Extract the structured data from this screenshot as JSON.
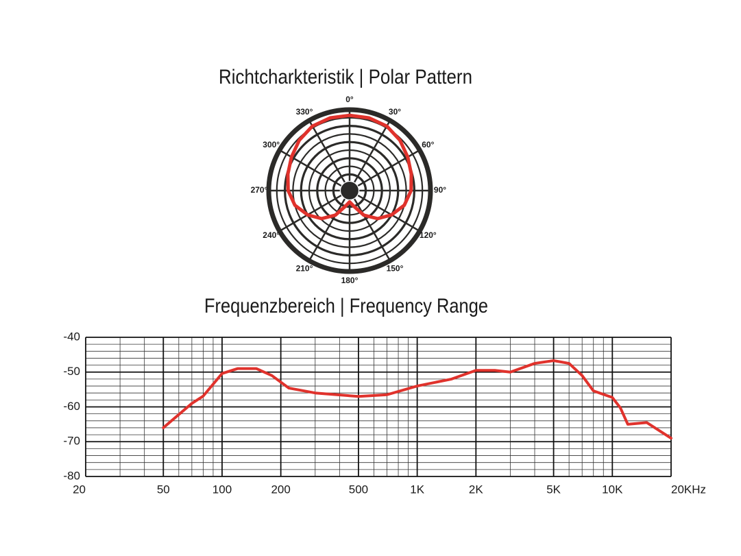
{
  "chart_data": [
    {
      "type": "polar",
      "title": "Richtcharkteristik | Polar Pattern",
      "theta": [
        0,
        15,
        30,
        45,
        60,
        75,
        90,
        105,
        120,
        135,
        150,
        165,
        180,
        195,
        210,
        225,
        240,
        255,
        270,
        285,
        300,
        315,
        330,
        345
      ],
      "values": [
        0.93,
        0.93,
        0.92,
        0.88,
        0.83,
        0.79,
        0.76,
        0.7,
        0.6,
        0.49,
        0.35,
        0.2,
        0.14,
        0.2,
        0.35,
        0.49,
        0.6,
        0.7,
        0.76,
        0.79,
        0.83,
        0.88,
        0.92,
        0.93
      ],
      "color": "#e0322c",
      "rlim": [
        0,
        1
      ],
      "thetaticks": [
        {
          "value": 0,
          "label": "0°"
        },
        {
          "value": 30,
          "label": "30°"
        },
        {
          "value": 60,
          "label": "60°"
        },
        {
          "value": 90,
          "label": "90°"
        },
        {
          "value": 120,
          "label": "120°"
        },
        {
          "value": 150,
          "label": "150°"
        },
        {
          "value": 180,
          "label": "180°"
        },
        {
          "value": 210,
          "label": "210°"
        },
        {
          "value": 240,
          "label": "240°"
        },
        {
          "value": 270,
          "label": "270°"
        },
        {
          "value": 300,
          "label": "300°"
        },
        {
          "value": 330,
          "label": "330°"
        }
      ]
    },
    {
      "type": "line",
      "title": "Frequenzbereich | Frequency Range",
      "xscale": "log",
      "grid": true,
      "x": [
        50,
        70,
        80,
        100,
        120,
        150,
        180,
        220,
        300,
        500,
        700,
        1000,
        1500,
        2000,
        2500,
        3000,
        4000,
        5000,
        6000,
        7000,
        8000,
        10000,
        11000,
        12000,
        15000,
        20000
      ],
      "values": [
        -66,
        -59,
        -56.9,
        -50.4,
        -49,
        -49,
        -51,
        -54.6,
        -56,
        -57,
        -56.5,
        -54,
        -52,
        -49.5,
        -49.5,
        -50,
        -47.5,
        -46.7,
        -47.5,
        -51,
        -55.4,
        -57.3,
        -60.3,
        -65,
        -64.5,
        -69
      ],
      "color": "#e0322c",
      "xlim": [
        20,
        20000
      ],
      "ylim": [
        -80,
        -40
      ],
      "xticks": [
        20,
        50,
        100,
        200,
        500,
        {
          "value": 1000,
          "label": "1K"
        },
        {
          "value": 2000,
          "label": "2K"
        },
        {
          "value": 5000,
          "label": "5K"
        },
        {
          "value": 10000,
          "label": "10K"
        },
        {
          "value": 20000,
          "label": "20KHz"
        }
      ],
      "yticks": [
        -40,
        -50,
        -60,
        -70,
        -80
      ]
    }
  ]
}
